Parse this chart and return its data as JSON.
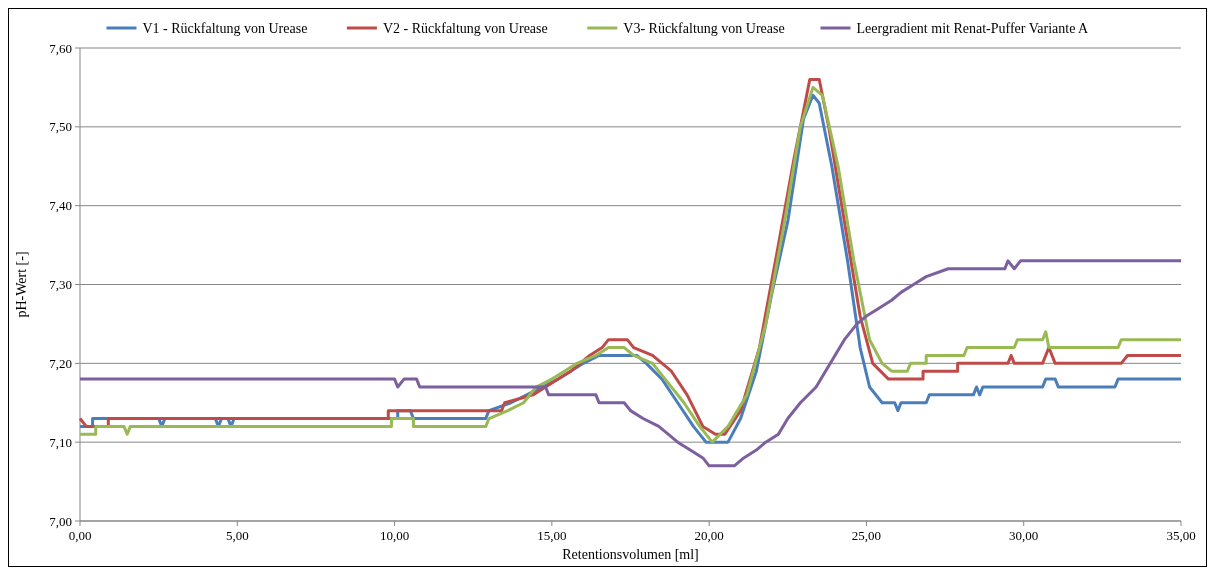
{
  "chart_data": {
    "type": "line",
    "xlabel": "Retentionsvolumen  [ml]",
    "ylabel": "pH-Wert [-]",
    "xlim": [
      0,
      35
    ],
    "ylim": [
      7.0,
      7.6
    ],
    "xticks": [
      {
        "value": 0,
        "label": "0,00"
      },
      {
        "value": 5,
        "label": "5,00"
      },
      {
        "value": 10,
        "label": "10,00"
      },
      {
        "value": 15,
        "label": "15,00"
      },
      {
        "value": 20,
        "label": "20,00"
      },
      {
        "value": 25,
        "label": "25,00"
      },
      {
        "value": 30,
        "label": "30,00"
      },
      {
        "value": 35,
        "label": "35,00"
      }
    ],
    "yticks": [
      {
        "value": 7.0,
        "label": "7,00"
      },
      {
        "value": 7.1,
        "label": "7,10"
      },
      {
        "value": 7.2,
        "label": "7,20"
      },
      {
        "value": 7.3,
        "label": "7,30"
      },
      {
        "value": 7.4,
        "label": "7,40"
      },
      {
        "value": 7.5,
        "label": "7,50"
      },
      {
        "value": 7.6,
        "label": "7,60"
      }
    ],
    "grid": "y",
    "legend": "top",
    "marker": "none",
    "line_style": "solid",
    "series": [
      {
        "name": "V1 - Rückfaltung von Urease",
        "color": "#4a7ebb",
        "x": [
          0,
          0.4,
          0.4,
          2.5,
          2.6,
          2.7,
          4.3,
          4.4,
          4.5,
          4.7,
          4.8,
          4.9,
          10.1,
          10.1,
          10.5,
          10.6,
          12.9,
          13.0,
          13.7,
          14.2,
          14.7,
          15.2,
          15.6,
          16.0,
          16.5,
          17.7,
          18.0,
          18.5,
          19.0,
          19.5,
          19.9,
          20.6,
          21.0,
          21.5,
          22.0,
          22.5,
          23.0,
          23.3,
          23.5,
          23.9,
          24.4,
          24.8,
          25.1,
          25.5,
          25.9,
          26.0,
          26.1,
          26.9,
          27.0,
          28.4,
          28.5,
          28.6,
          28.7,
          30.6,
          30.7,
          31.0,
          31.1,
          32.9,
          33.0,
          35
        ],
        "values": [
          7.12,
          7.12,
          7.13,
          7.13,
          7.12,
          7.13,
          7.13,
          7.12,
          7.13,
          7.13,
          7.12,
          7.13,
          7.13,
          7.14,
          7.14,
          7.13,
          7.13,
          7.14,
          7.15,
          7.16,
          7.17,
          7.18,
          7.19,
          7.2,
          7.21,
          7.21,
          7.2,
          7.18,
          7.15,
          7.12,
          7.1,
          7.1,
          7.13,
          7.19,
          7.29,
          7.38,
          7.51,
          7.54,
          7.53,
          7.45,
          7.33,
          7.22,
          7.17,
          7.15,
          7.15,
          7.14,
          7.15,
          7.15,
          7.16,
          7.16,
          7.17,
          7.16,
          7.17,
          7.17,
          7.18,
          7.18,
          7.17,
          7.17,
          7.18,
          7.18
        ]
      },
      {
        "name": "V2 - Rückfaltung von Urease",
        "color": "#be4b48",
        "x": [
          0,
          0.2,
          0.9,
          0.9,
          9.8,
          9.8,
          13.4,
          13.5,
          14.4,
          14.8,
          15.2,
          15.6,
          15.9,
          16.2,
          16.6,
          16.8,
          17.4,
          17.6,
          18.2,
          18.8,
          19.3,
          19.8,
          20.2,
          20.5,
          21.0,
          21.6,
          22.2,
          22.7,
          23.1,
          23.2,
          23.5,
          23.8,
          24.3,
          24.8,
          25.2,
          25.7,
          26.8,
          26.8,
          27.9,
          27.9,
          29.5,
          29.6,
          29.7,
          30.6,
          30.8,
          31.0,
          33.1,
          33.3,
          35
        ],
        "values": [
          7.13,
          7.12,
          7.12,
          7.13,
          7.13,
          7.14,
          7.14,
          7.15,
          7.16,
          7.17,
          7.18,
          7.19,
          7.2,
          7.21,
          7.22,
          7.23,
          7.23,
          7.22,
          7.21,
          7.19,
          7.16,
          7.12,
          7.11,
          7.11,
          7.14,
          7.22,
          7.35,
          7.46,
          7.54,
          7.56,
          7.56,
          7.5,
          7.38,
          7.26,
          7.2,
          7.18,
          7.18,
          7.19,
          7.19,
          7.2,
          7.2,
          7.21,
          7.2,
          7.2,
          7.22,
          7.2,
          7.2,
          7.21,
          7.21
        ]
      },
      {
        "name": "V3- Rückfaltung von Urease",
        "color": "#98b954",
        "x": [
          0,
          0.5,
          0.5,
          1.4,
          1.5,
          1.6,
          9.9,
          9.9,
          10.6,
          10.6,
          12.9,
          13.0,
          13.6,
          14.1,
          14.5,
          15.0,
          15.4,
          15.8,
          16.4,
          16.8,
          17.3,
          17.6,
          18.2,
          18.6,
          19.2,
          19.7,
          20.1,
          20.6,
          21.2,
          21.8,
          22.4,
          22.9,
          23.3,
          23.6,
          24.1,
          24.6,
          25.1,
          25.5,
          25.8,
          26.3,
          26.4,
          26.9,
          26.9,
          28.1,
          28.2,
          29.7,
          29.8,
          30.6,
          30.7,
          30.8,
          33.0,
          33.1,
          35
        ],
        "values": [
          7.11,
          7.11,
          7.12,
          7.12,
          7.11,
          7.12,
          7.12,
          7.13,
          7.13,
          7.12,
          7.12,
          7.13,
          7.14,
          7.15,
          7.17,
          7.18,
          7.19,
          7.2,
          7.21,
          7.22,
          7.22,
          7.21,
          7.2,
          7.18,
          7.15,
          7.12,
          7.1,
          7.12,
          7.16,
          7.25,
          7.38,
          7.5,
          7.55,
          7.54,
          7.45,
          7.33,
          7.23,
          7.2,
          7.19,
          7.19,
          7.2,
          7.2,
          7.21,
          7.21,
          7.22,
          7.22,
          7.23,
          7.23,
          7.24,
          7.22,
          7.22,
          7.23,
          7.23
        ]
      },
      {
        "name": "Leergradient mit Renat-Puffer Variante A",
        "color": "#7d5fa0",
        "x": [
          0,
          10.0,
          10.1,
          10.3,
          10.7,
          10.8,
          14.8,
          14.9,
          16.4,
          16.5,
          17.3,
          17.5,
          17.9,
          18.4,
          19.0,
          19.4,
          19.8,
          20.0,
          20.8,
          21.1,
          21.5,
          21.8,
          22.2,
          22.5,
          22.9,
          23.4,
          23.7,
          24.0,
          24.3,
          24.7,
          25.0,
          25.4,
          25.8,
          26.1,
          26.5,
          26.9,
          27.6,
          29.4,
          29.5,
          29.7,
          29.9,
          35
        ],
        "values": [
          7.18,
          7.18,
          7.17,
          7.18,
          7.18,
          7.17,
          7.17,
          7.16,
          7.16,
          7.15,
          7.15,
          7.14,
          7.13,
          7.12,
          7.1,
          7.09,
          7.08,
          7.07,
          7.07,
          7.08,
          7.09,
          7.1,
          7.11,
          7.13,
          7.15,
          7.17,
          7.19,
          7.21,
          7.23,
          7.25,
          7.26,
          7.27,
          7.28,
          7.29,
          7.3,
          7.31,
          7.32,
          7.32,
          7.33,
          7.32,
          7.33,
          7.33
        ]
      }
    ]
  }
}
